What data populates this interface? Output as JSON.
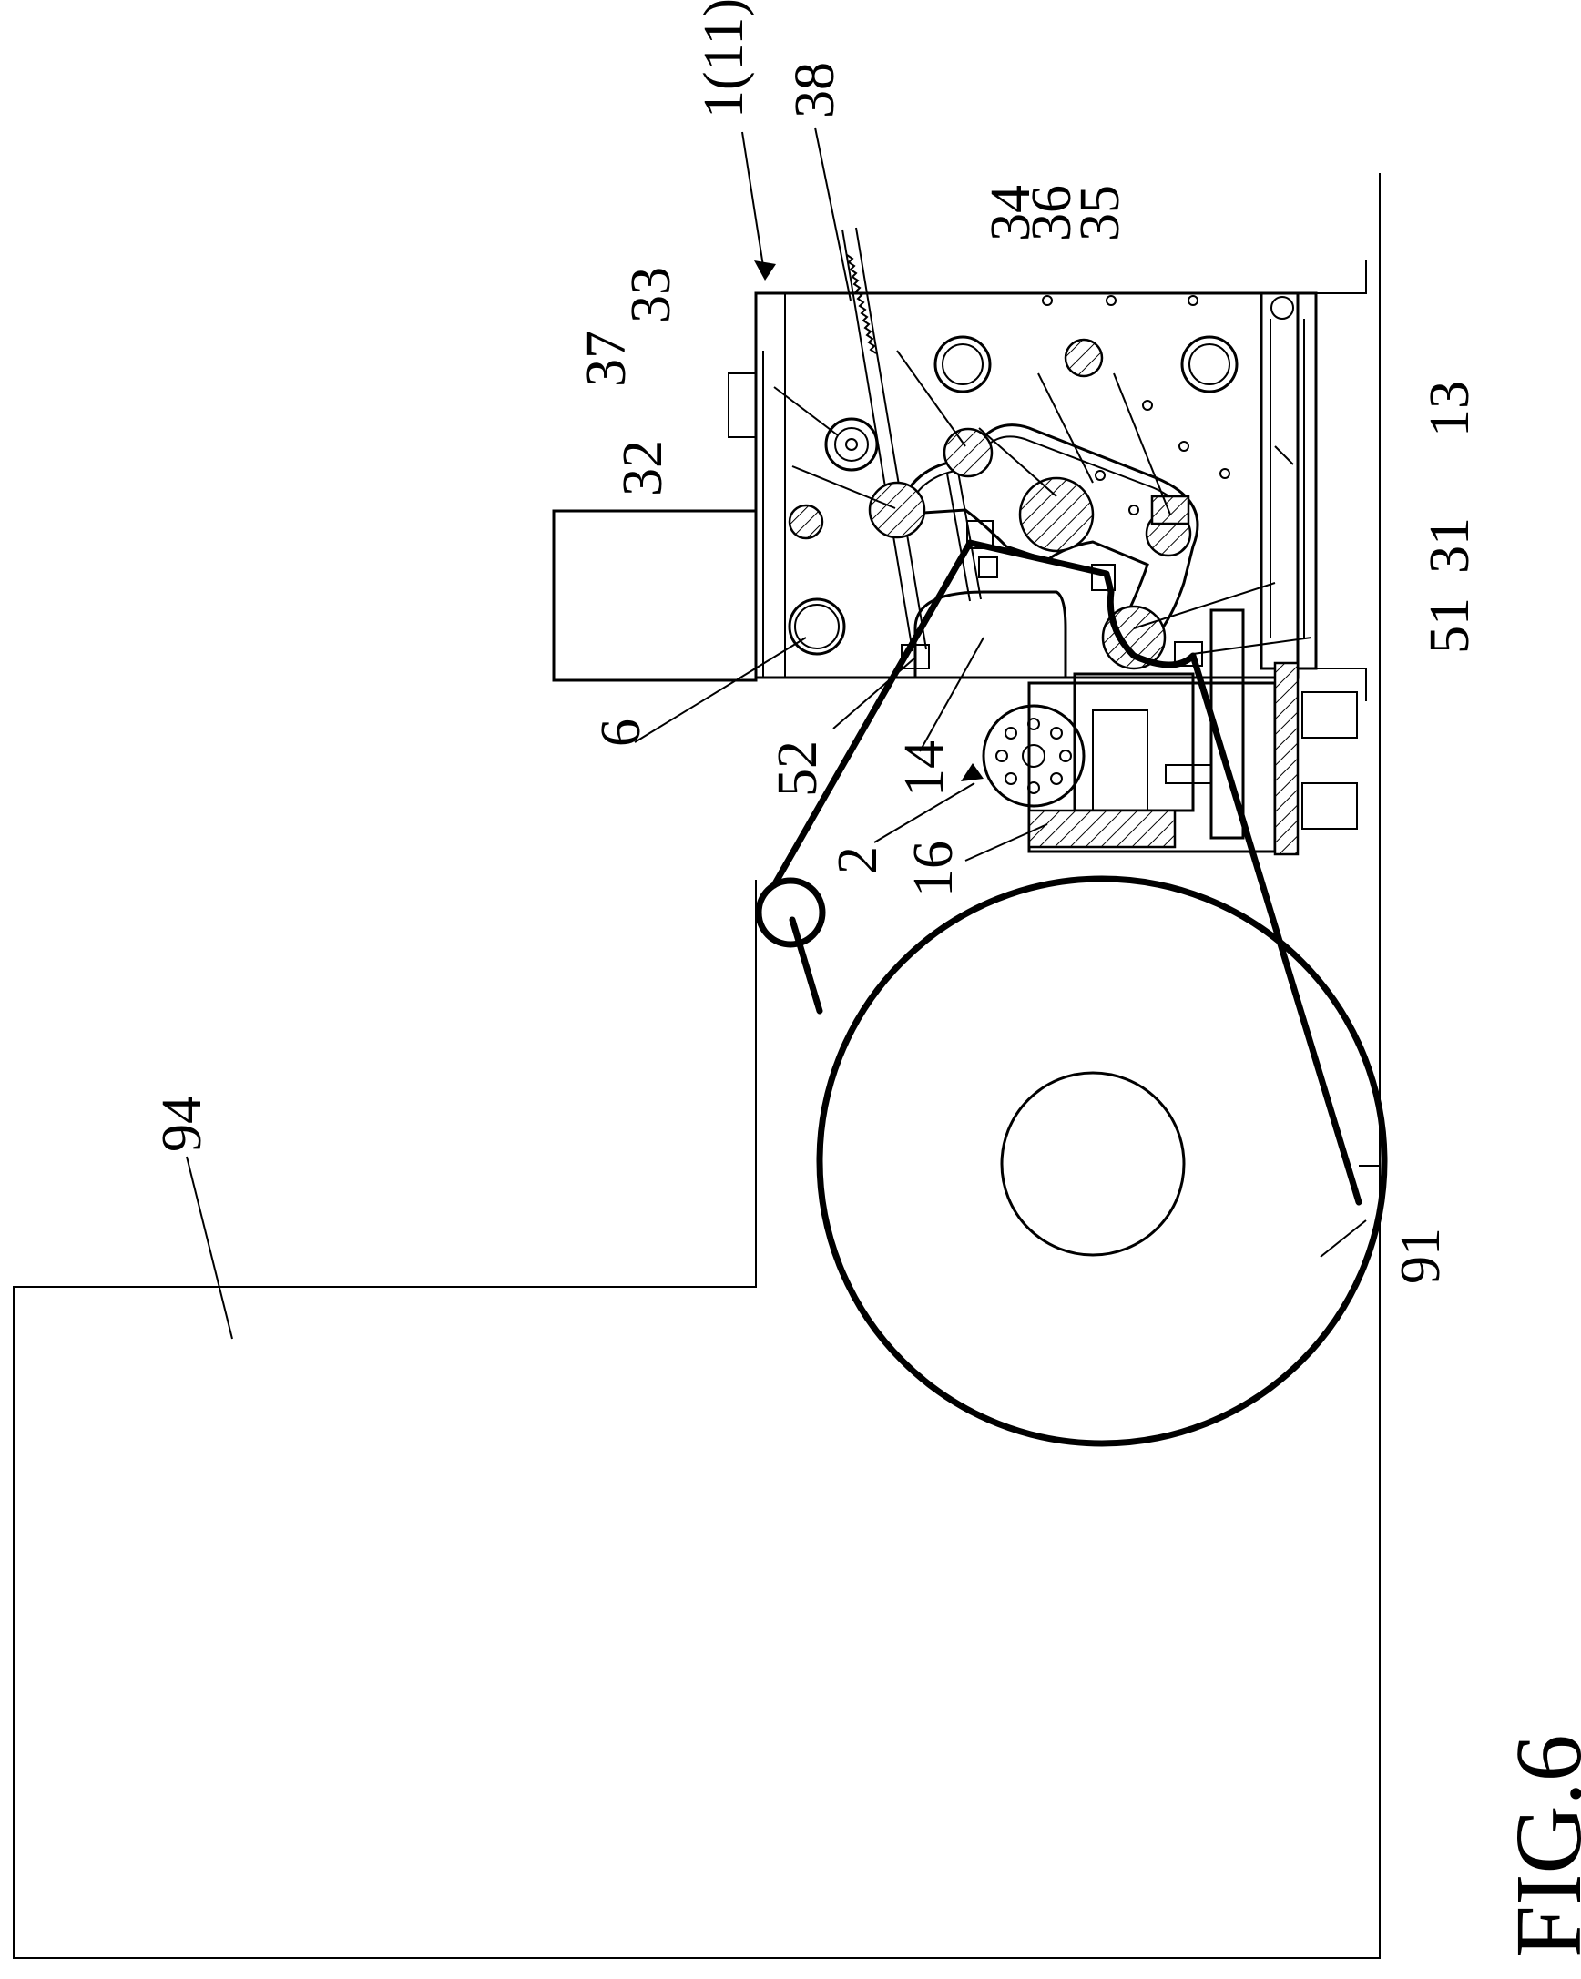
{
  "figure": {
    "title": "FIG.6"
  },
  "labels": {
    "l_1_11": "1(11)",
    "l_38": "38",
    "l_33": "33",
    "l_34": "34",
    "l_36": "36",
    "l_35": "35",
    "l_37": "37",
    "l_32": "32",
    "l_13": "13",
    "l_31": "31",
    "l_51": "51",
    "l_6": "6",
    "l_52": "52",
    "l_14": "14",
    "l_2": "2",
    "l_16": "16",
    "l_94": "94",
    "l_91": "91"
  }
}
